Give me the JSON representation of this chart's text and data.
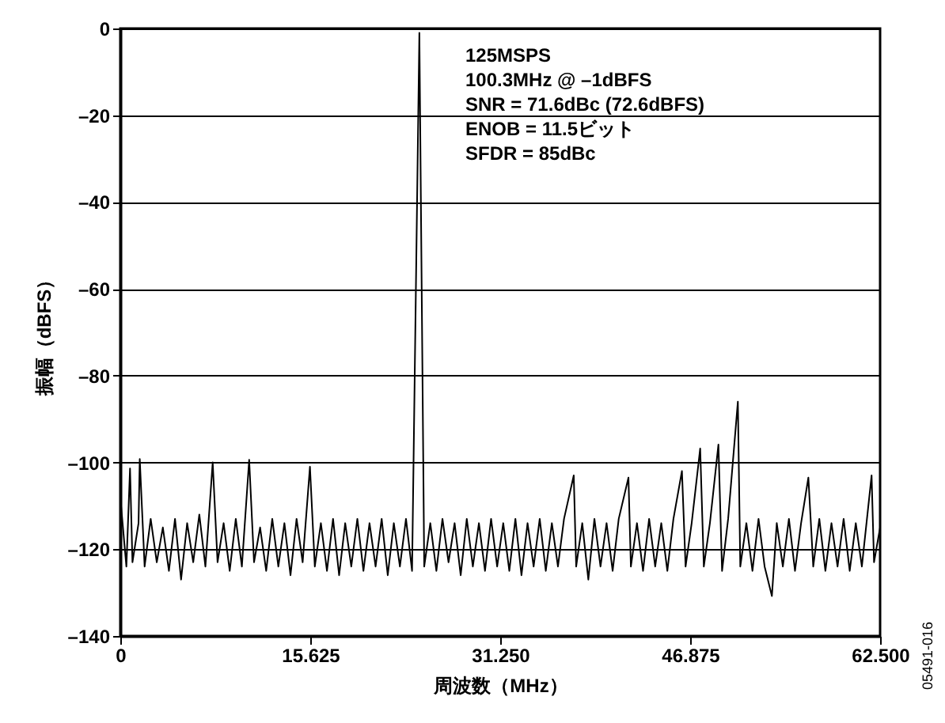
{
  "chart_data": {
    "type": "line",
    "xlabel": "周波数（MHz）",
    "ylabel": "振幅（dBFS）",
    "annotations": [
      "125MSPS",
      "100.3MHz @ –1dBFS",
      "SNR = 71.6dBc (72.6dBFS)",
      "ENOB = 11.5ビット",
      "SFDR = 85dBc",
      "05491-016"
    ],
    "x": [
      0,
      0.5,
      0.8,
      1.0,
      1.5,
      1.6,
      2.0,
      2.5,
      3.0,
      3.5,
      4.0,
      4.5,
      5.0,
      5.5,
      6.0,
      6.5,
      7.0,
      7.6,
      8.0,
      8.5,
      9.0,
      9.5,
      10.0,
      10.6,
      11.0,
      11.5,
      12.0,
      12.5,
      13.0,
      13.5,
      14.0,
      14.5,
      15.0,
      15.6,
      16.0,
      16.5,
      17.0,
      17.5,
      18.0,
      18.5,
      19.0,
      19.5,
      20.0,
      20.5,
      21.0,
      21.5,
      22.0,
      22.5,
      23.0,
      23.5,
      24.0,
      24.6,
      25.0,
      25.5,
      26.0,
      26.5,
      27.0,
      27.5,
      28.0,
      28.5,
      29.0,
      29.5,
      30.0,
      30.5,
      31.0,
      31.5,
      32.0,
      32.5,
      33.0,
      33.5,
      34.0,
      34.5,
      35.0,
      35.5,
      36.0,
      36.5,
      37.3,
      37.5,
      38.0,
      38.5,
      39.0,
      39.5,
      40.0,
      40.5,
      41.0,
      41.8,
      42.0,
      42.5,
      43.0,
      43.5,
      44.0,
      44.5,
      45.0,
      45.5,
      46.2,
      46.5,
      47.0,
      47.7,
      48.0,
      48.5,
      49.2,
      49.5,
      50.0,
      50.8,
      51.0,
      51.5,
      52.0,
      52.5,
      53.0,
      53.6,
      54.0,
      54.5,
      55.0,
      55.5,
      56.0,
      56.6,
      57.0,
      57.5,
      58.0,
      58.5,
      59.0,
      59.5,
      60.0,
      60.5,
      61.0,
      61.8,
      62.0,
      62.5
    ],
    "series": [
      {
        "color": "#000000",
        "values": [
          -108,
          -124,
          -101.4,
          -123,
          -114,
          -99.2,
          -124,
          -113,
          -123,
          -115,
          -125,
          -113,
          -127,
          -114,
          -123,
          -112,
          -124,
          -100,
          -123,
          -114,
          -125,
          -113,
          -124,
          -99.4,
          -123,
          -115,
          -125,
          -113,
          -124,
          -114,
          -126,
          -113,
          -123,
          -101,
          -124,
          -114,
          -125,
          -113,
          -126,
          -114,
          -124,
          -113,
          -125,
          -114,
          -124,
          -113,
          -126,
          -114,
          -124,
          -113,
          -125,
          -1,
          -124,
          -114,
          -125,
          -113,
          -123,
          -114,
          -126,
          -113,
          -124,
          -114,
          -125,
          -113,
          -124,
          -114,
          -125,
          -113,
          -126,
          -114,
          -124,
          -113,
          -125,
          -114,
          -124,
          -113,
          -103,
          -124,
          -114,
          -127,
          -113,
          -124,
          -114,
          -125,
          -113,
          -103.5,
          -124,
          -114,
          -125,
          -113,
          -124,
          -114,
          -125,
          -113,
          -102,
          -124,
          -114,
          -96.8,
          -124,
          -114,
          -95.9,
          -125,
          -113,
          -86,
          -124,
          -114,
          -125,
          -113,
          -124,
          -130.8,
          -114,
          -124,
          -113,
          -125,
          -114,
          -103.5,
          -124,
          -113,
          -125,
          -114,
          -124,
          -113,
          -125,
          -114,
          -124,
          -103,
          -123,
          -115
        ]
      }
    ],
    "xlim": [
      0,
      62.5
    ],
    "xticks": [
      0,
      {
        "value": 15.625,
        "label": "15.625"
      },
      {
        "value": 31.25,
        "label": "31.250"
      },
      {
        "value": 46.875,
        "label": "46.875"
      },
      {
        "value": 62.5,
        "label": "62.500"
      }
    ],
    "ylim": [
      -140,
      0
    ],
    "yticks": [
      {
        "value": -140,
        "label": "–140"
      },
      {
        "value": -120,
        "label": "–120"
      },
      {
        "value": -100,
        "label": "–100"
      },
      {
        "value": -80,
        "label": "–80"
      },
      {
        "value": -60,
        "label": "–60"
      },
      {
        "value": -40,
        "label": "–40"
      },
      {
        "value": -20,
        "label": "–20"
      },
      0
    ],
    "grid": "y"
  }
}
